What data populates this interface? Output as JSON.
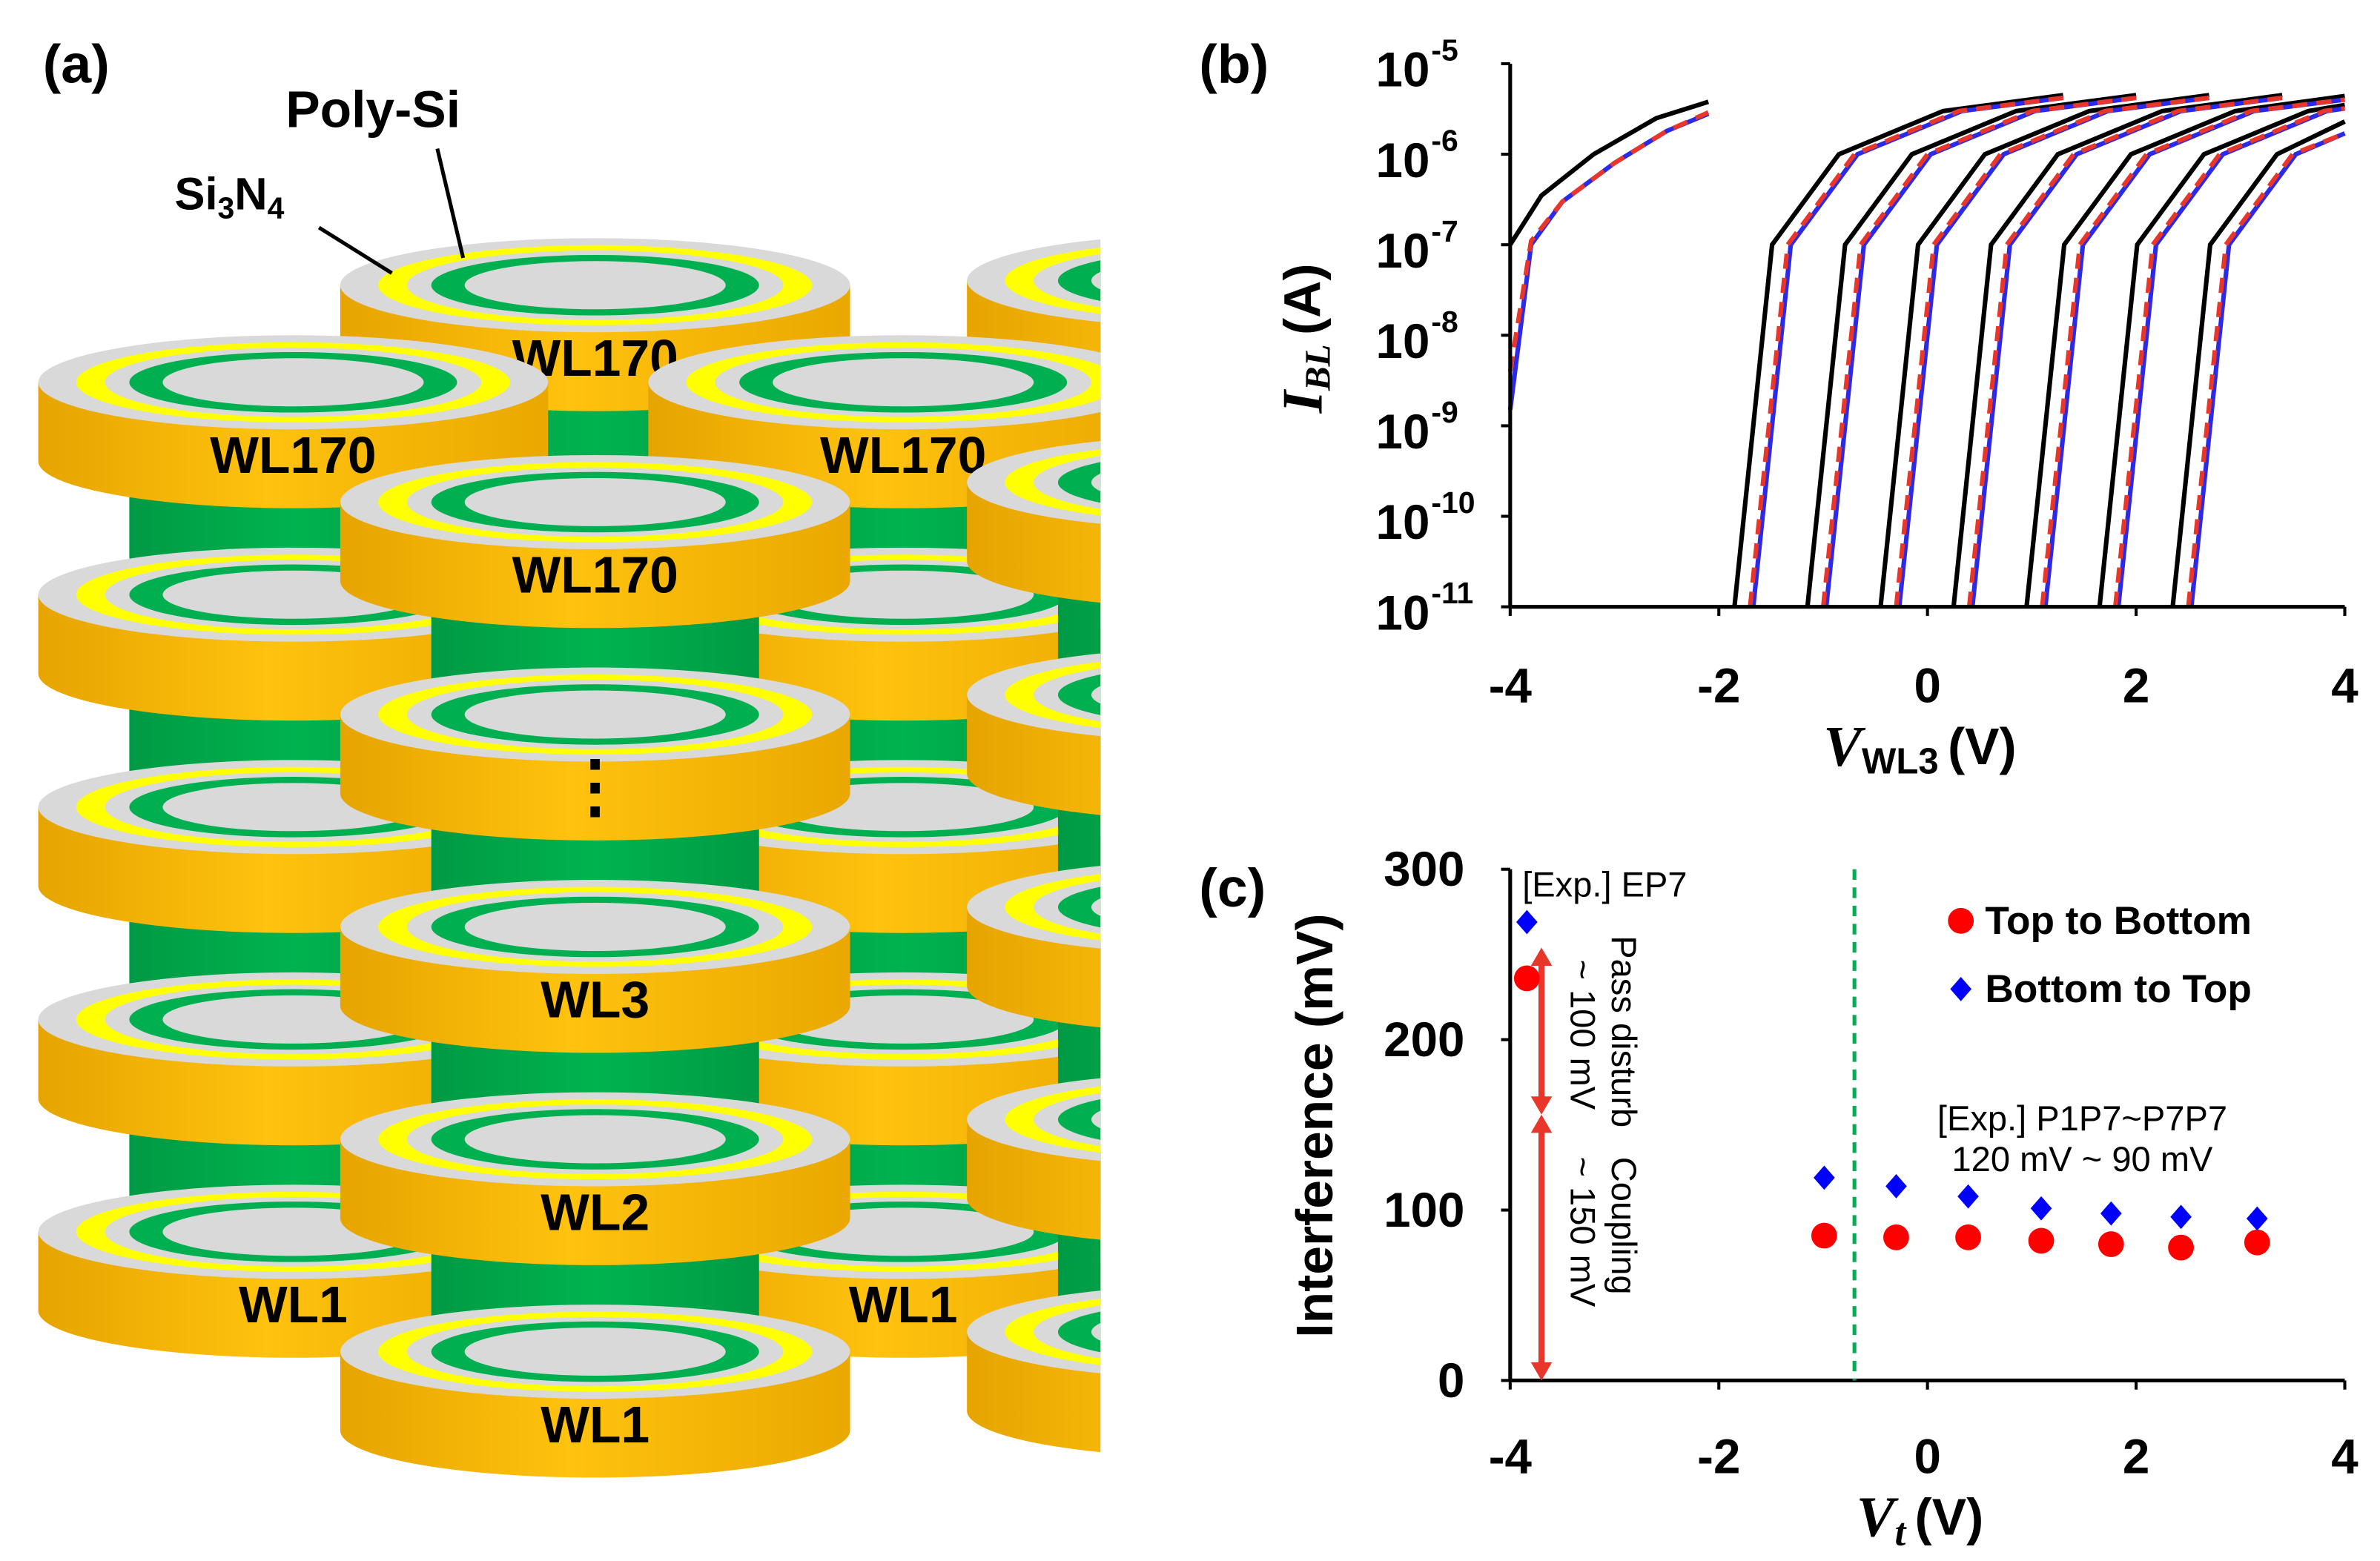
{
  "diagram": {
    "panel": "(a)",
    "poly_si": "Poly-Si",
    "si3n4": [
      "Si",
      "3",
      "N",
      "4"
    ],
    "word_lines": [
      "WL170",
      "WL170",
      "WL170",
      "WL170",
      "WL3",
      "WL2",
      "WL1",
      "WL1",
      "WL1"
    ],
    "ellipsis": "⋮"
  },
  "chart_data": [
    {
      "type": "line",
      "panel": "(b)",
      "log_y": true,
      "xlabel": {
        "symbol": "V",
        "subscript": "WL3",
        "unit": "(V)"
      },
      "ylabel": {
        "symbol": "I",
        "subscript": "BL",
        "unit": "(A)"
      },
      "xlim": [
        -4,
        4
      ],
      "xticks": [
        -4,
        -2,
        0,
        2,
        4
      ],
      "ylim": [
        1e-11,
        1e-05
      ],
      "yticks": [
        {
          "value": 1e-11,
          "label": "10",
          "exponent": "-11"
        },
        {
          "value": 1e-10,
          "label": "10",
          "exponent": "-10"
        },
        {
          "value": 1e-09,
          "label": "10",
          "exponent": "-9"
        },
        {
          "value": 1e-08,
          "label": "10",
          "exponent": "-8"
        },
        {
          "value": 1e-07,
          "label": "10",
          "exponent": "-7"
        },
        {
          "value": 1e-06,
          "label": "10",
          "exponent": "-6"
        },
        {
          "value": 1e-05,
          "label": "10",
          "exponent": "-5"
        }
      ],
      "series": [
        {
          "color": "#000000",
          "x": [
            -4,
            -3.7,
            -3.2,
            -2.6,
            -2.1
          ],
          "values": [
            1e-07,
            3.5e-07,
            1e-06,
            2.5e-06,
            3.8e-06
          ]
        },
        {
          "color": "#2a2ae8",
          "x": [
            -4,
            -3.8,
            -3.5,
            -3,
            -2.5,
            -2.1
          ],
          "values": [
            1.5e-09,
            1e-07,
            3e-07,
            8e-07,
            1.8e-06,
            2.8e-06
          ]
        },
        {
          "color": "#e8362b",
          "dash": true,
          "x": [
            -4,
            -3.8,
            -3.5,
            -3,
            -2.5,
            -2.1
          ],
          "values": [
            4e-09,
            1.1e-07,
            3e-07,
            8e-07,
            1.8e-06,
            2.9e-06
          ]
        },
        {
          "color": "#000000",
          "x": [
            -1.85,
            -1.49,
            -0.85,
            0.15,
            1.3
          ],
          "values": [
            1e-11,
            1e-07,
            1e-06,
            3e-06,
            4.5e-06
          ]
        },
        {
          "color": "#2a2ae8",
          "x": [
            -1.67,
            -1.31,
            -0.67,
            0.33,
            1.3
          ],
          "values": [
            1e-11,
            1e-07,
            1e-06,
            3e-06,
            4.2e-06
          ]
        },
        {
          "color": "#e8362b",
          "dash": true,
          "x": [
            -1.7,
            -1.34,
            -0.7,
            0.3,
            1.3
          ],
          "values": [
            1e-11,
            1e-07,
            1e-06,
            3e-06,
            4.2e-06
          ]
        },
        {
          "color": "#000000",
          "x": [
            -1.15,
            -0.79,
            -0.15,
            0.85,
            2.0
          ],
          "values": [
            1e-11,
            1e-07,
            1e-06,
            3e-06,
            4.5e-06
          ]
        },
        {
          "color": "#2a2ae8",
          "x": [
            -0.97,
            -0.61,
            0.03,
            1.03,
            2.0
          ],
          "values": [
            1e-11,
            1e-07,
            1e-06,
            3e-06,
            4.2e-06
          ]
        },
        {
          "color": "#e8362b",
          "dash": true,
          "x": [
            -1.0,
            -0.64,
            0,
            1.0,
            2.0
          ],
          "values": [
            1e-11,
            1e-07,
            1e-06,
            3e-06,
            4.2e-06
          ]
        },
        {
          "color": "#000000",
          "x": [
            -0.45,
            -0.09,
            0.55,
            1.55,
            2.7
          ],
          "values": [
            1e-11,
            1e-07,
            1e-06,
            3e-06,
            4.5e-06
          ]
        },
        {
          "color": "#2a2ae8",
          "x": [
            -0.27,
            0.09,
            0.73,
            1.73,
            2.7
          ],
          "values": [
            1e-11,
            1e-07,
            1e-06,
            3e-06,
            4.2e-06
          ]
        },
        {
          "color": "#e8362b",
          "dash": true,
          "x": [
            -0.3,
            0.06,
            0.7,
            1.7,
            2.7
          ],
          "values": [
            1e-11,
            1e-07,
            1e-06,
            3e-06,
            4.2e-06
          ]
        },
        {
          "color": "#000000",
          "x": [
            0.25,
            0.61,
            1.25,
            2.25,
            3.4
          ],
          "values": [
            1e-11,
            1e-07,
            1e-06,
            3e-06,
            4.5e-06
          ]
        },
        {
          "color": "#2a2ae8",
          "x": [
            0.43,
            0.79,
            1.43,
            2.43,
            3.4
          ],
          "values": [
            1e-11,
            1e-07,
            1e-06,
            3e-06,
            4.2e-06
          ]
        },
        {
          "color": "#e8362b",
          "dash": true,
          "x": [
            0.4,
            0.76,
            1.4,
            2.4,
            3.4
          ],
          "values": [
            1e-11,
            1e-07,
            1e-06,
            3e-06,
            4.2e-06
          ]
        },
        {
          "color": "#000000",
          "x": [
            0.95,
            1.31,
            1.95,
            2.95,
            4
          ],
          "values": [
            1e-11,
            1e-07,
            1e-06,
            3e-06,
            4.4e-06
          ]
        },
        {
          "color": "#2a2ae8",
          "x": [
            1.13,
            1.49,
            2.13,
            3.13,
            4
          ],
          "values": [
            1e-11,
            1e-07,
            1e-06,
            3e-06,
            4e-06
          ]
        },
        {
          "color": "#e8362b",
          "dash": true,
          "x": [
            1.1,
            1.46,
            2.1,
            3.1,
            4
          ],
          "values": [
            1e-11,
            1e-07,
            1e-06,
            3e-06,
            4e-06
          ]
        },
        {
          "color": "#000000",
          "x": [
            1.65,
            2.01,
            2.65,
            3.65,
            4
          ],
          "values": [
            1e-11,
            1e-07,
            1e-06,
            3e-06,
            3.5e-06
          ]
        },
        {
          "color": "#2a2ae8",
          "x": [
            1.83,
            2.19,
            2.83,
            3.83,
            4
          ],
          "values": [
            1e-11,
            1e-07,
            1e-06,
            3e-06,
            3.2e-06
          ]
        },
        {
          "color": "#e8362b",
          "dash": true,
          "x": [
            1.8,
            2.16,
            2.8,
            3.8,
            4
          ],
          "values": [
            1e-11,
            1e-07,
            1e-06,
            3e-06,
            3.2e-06
          ]
        },
        {
          "color": "#000000",
          "x": [
            2.35,
            2.71,
            3.35,
            4
          ],
          "values": [
            1e-11,
            1e-07,
            1e-06,
            2.3e-06
          ]
        },
        {
          "color": "#2a2ae8",
          "x": [
            2.53,
            2.89,
            3.53,
            4
          ],
          "values": [
            1e-11,
            1e-07,
            1e-06,
            1.7e-06
          ]
        },
        {
          "color": "#e8362b",
          "dash": true,
          "x": [
            2.5,
            2.86,
            3.5,
            4
          ],
          "values": [
            1e-11,
            1e-07,
            1e-06,
            1.7e-06
          ]
        }
      ]
    },
    {
      "type": "scatter",
      "panel": "(c)",
      "xlabel": {
        "symbol": "V",
        "subscript": "t",
        "unit": "(V)"
      },
      "ylabel": "Interference (mV)",
      "xlim": [
        -4,
        4
      ],
      "xticks": [
        -4,
        -2,
        0,
        2,
        4
      ],
      "ylim": [
        0,
        300
      ],
      "yticks": [
        0,
        100,
        200,
        300
      ],
      "legend": "upper right",
      "series": [
        {
          "name": "Top to Bottom",
          "color": "#ff0000",
          "marker": "circle",
          "x": [
            -3.84,
            -0.99,
            -0.3,
            0.39,
            1.09,
            1.76,
            2.43,
            3.16
          ],
          "values": [
            236,
            85,
            84,
            84,
            82,
            80,
            78,
            81
          ]
        },
        {
          "name": "Bottom to Top",
          "color": "#0000ff",
          "marker": "diamond",
          "x": [
            -3.84,
            -0.99,
            -0.3,
            0.39,
            1.09,
            1.76,
            2.43,
            3.16
          ],
          "values": [
            269,
            119,
            114,
            108,
            101,
            98,
            96,
            95
          ]
        }
      ],
      "vline_x": -0.7,
      "vline_color": "#00b050",
      "arrows": [
        {
          "x": -3.7,
          "from": 0,
          "to": 156
        },
        {
          "x": -3.7,
          "from": 156,
          "to": 254
        }
      ],
      "arrow_color": "#e8362b",
      "annotation_color": "#00b070",
      "annotations": [
        "[Exp.] EP7",
        "Pass disturb",
        "~ 100 mV",
        "Coupling",
        "~ 150 mV",
        "[Exp.] P1P7~P7P7",
        "120 mV ~ 90 mV"
      ]
    }
  ]
}
